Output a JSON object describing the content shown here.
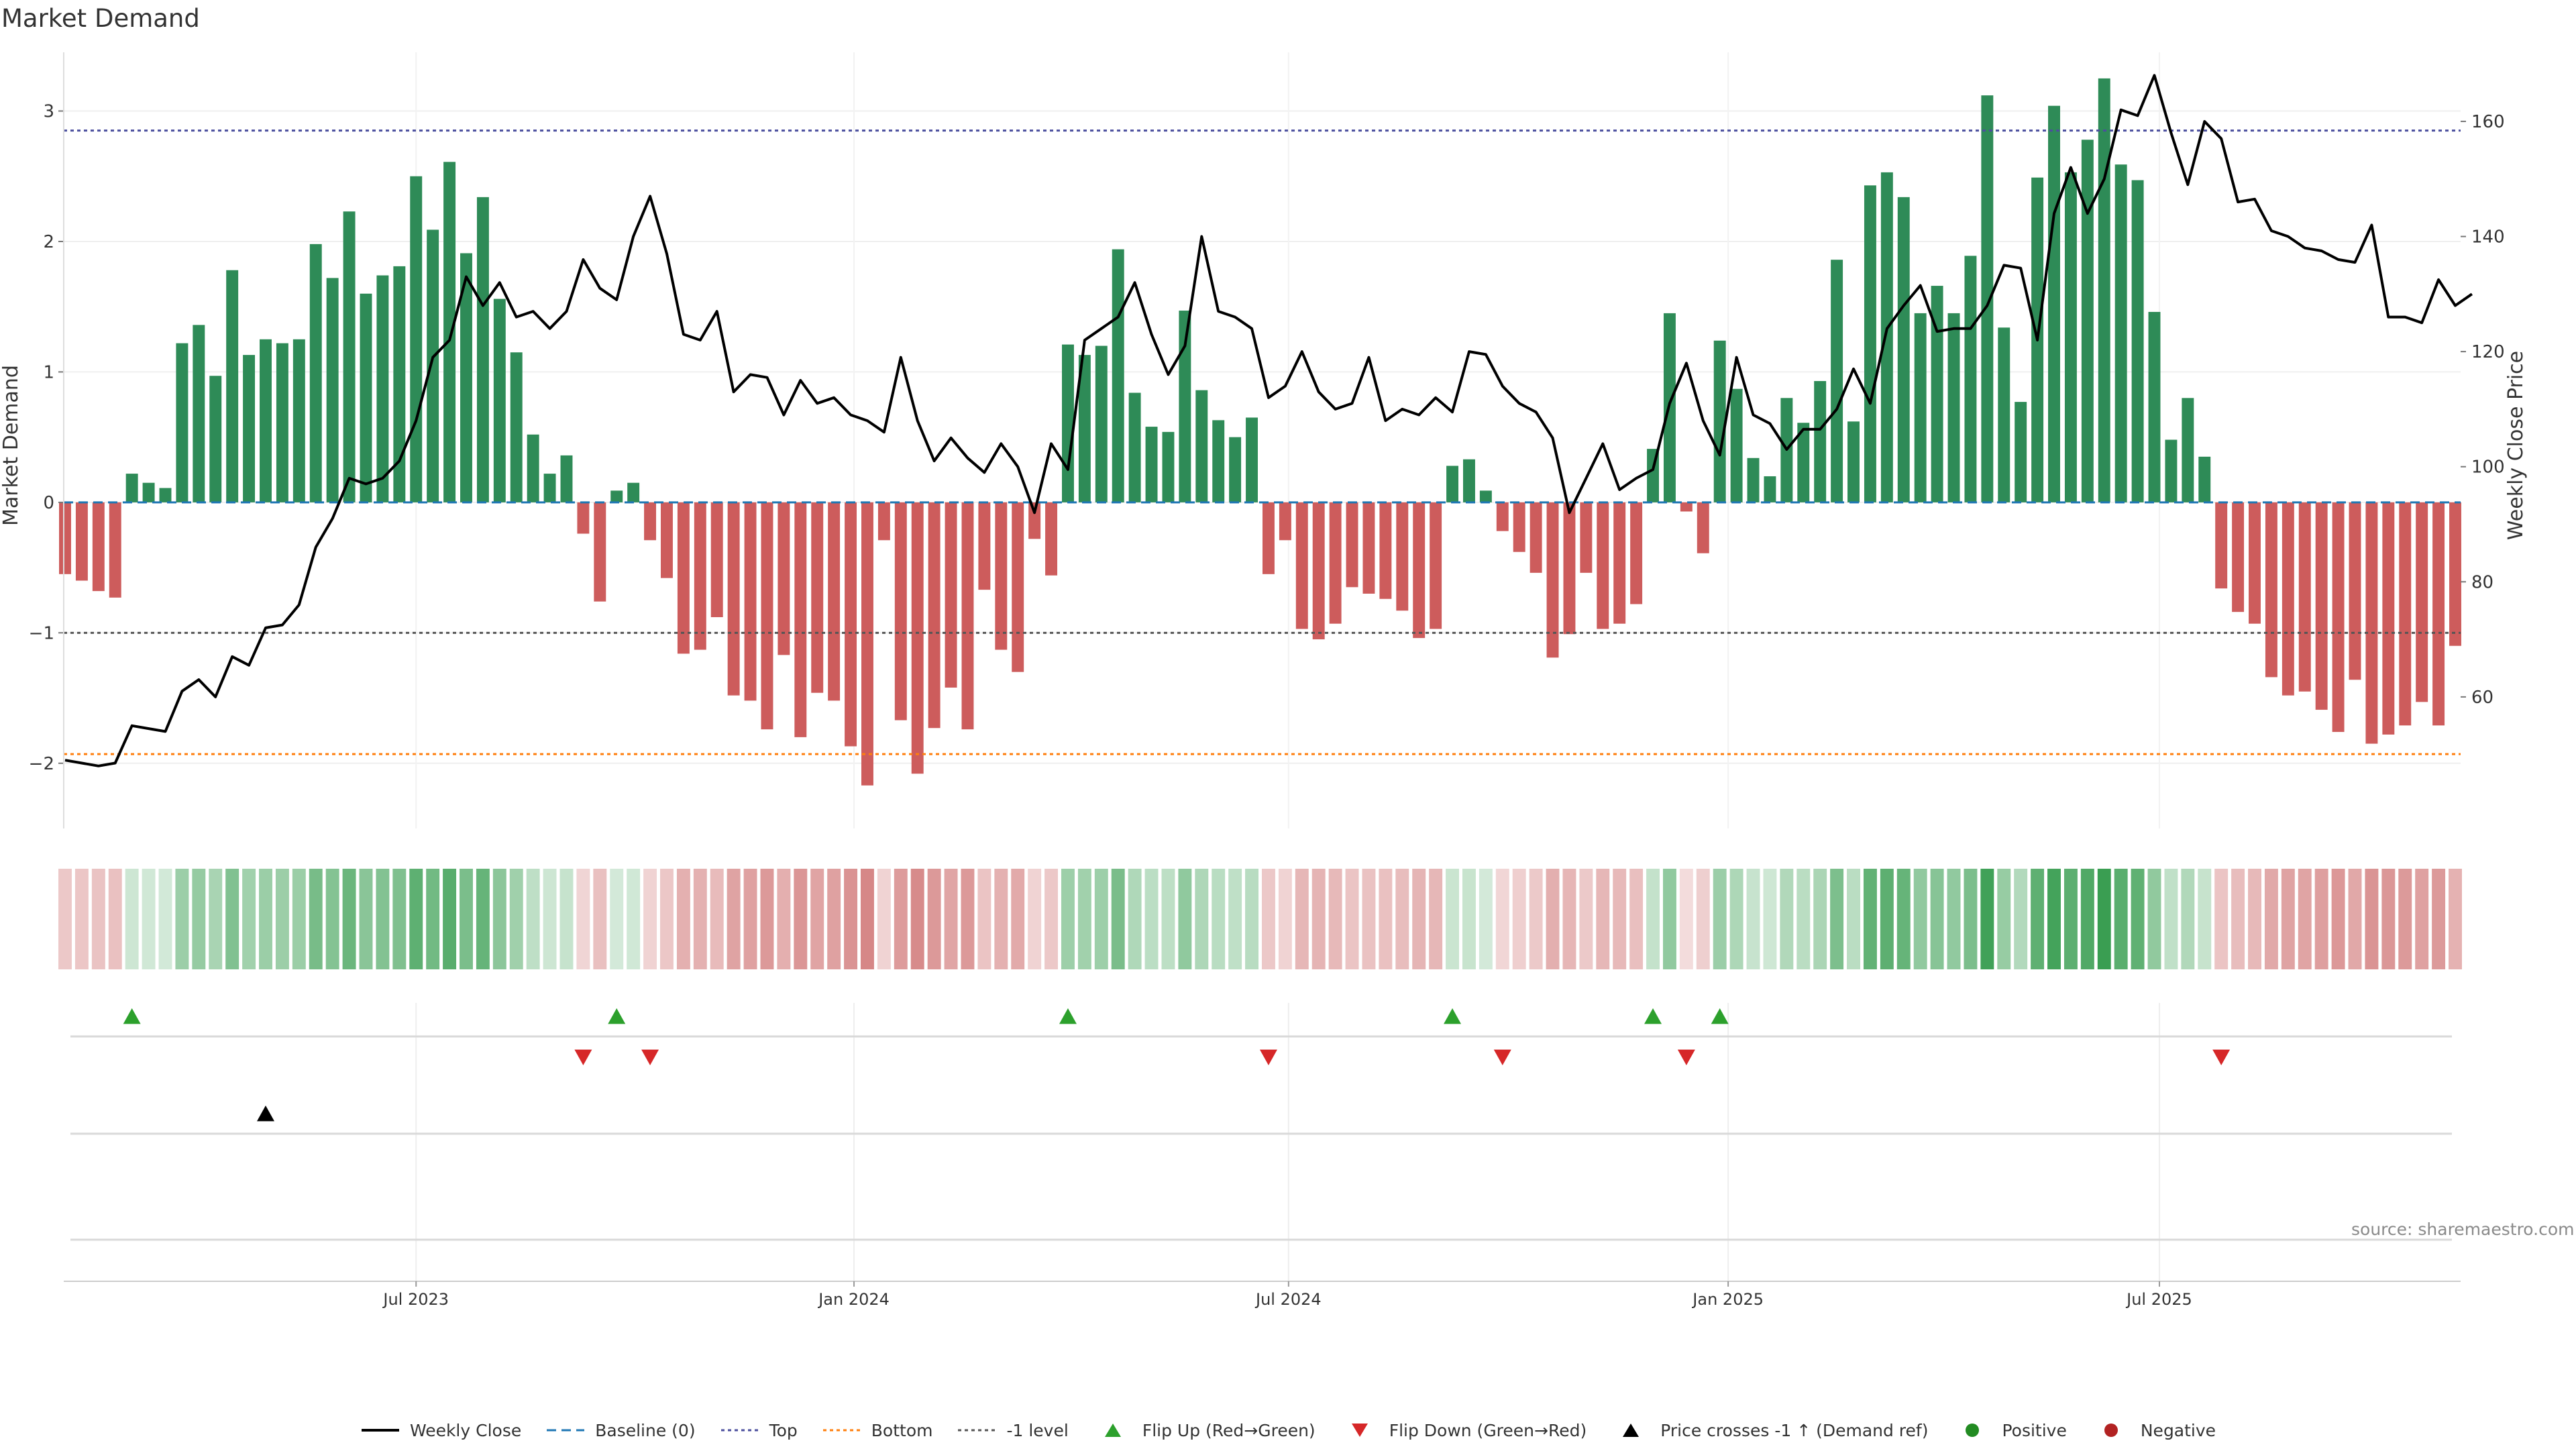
{
  "title": "Market Demand",
  "source": "source: sharemaestro.com",
  "colors": {
    "positive_bar": "#2e8b57",
    "negative_bar": "#cd5c5c",
    "close_line": "#000000",
    "baseline": "#1f77b4",
    "top": "#4b4f9e",
    "bottom": "#ff7f0e",
    "minus1": "#555555",
    "flip_up": "#2ca02c",
    "flip_down": "#d62728",
    "cross": "#000000",
    "positive_dot": "#228b22",
    "negative_dot": "#b22222"
  },
  "legend": [
    {
      "label": "Weekly Close",
      "icon": "solid-line-icon",
      "color": "#000000"
    },
    {
      "label": "Baseline (0)",
      "icon": "dashed-line-icon",
      "color": "#1f77b4"
    },
    {
      "label": "Top",
      "icon": "dotted-line-icon",
      "color": "#4b4f9e"
    },
    {
      "label": "Bottom",
      "icon": "dotted-line-icon",
      "color": "#ff7f0e"
    },
    {
      "label": "-1 level",
      "icon": "dotted-line-icon",
      "color": "#555555"
    },
    {
      "label": "Flip Up (Red→Green)",
      "icon": "triangle-up-icon",
      "color": "#2ca02c"
    },
    {
      "label": "Flip Down (Green→Red)",
      "icon": "triangle-down-icon",
      "color": "#d62728"
    },
    {
      "label": "Price crosses -1 ↑ (Demand ref)",
      "icon": "triangle-up-icon",
      "color": "#000000"
    },
    {
      "label": "Positive",
      "icon": "circle-icon",
      "color": "#228b22"
    },
    {
      "label": "Negative",
      "icon": "circle-icon",
      "color": "#b22222"
    }
  ],
  "chart_data": {
    "type": "bar",
    "ylabel": "Market Demand",
    "y2label": "Weekly Close Price",
    "ylim": [
      -2.5,
      3.45
    ],
    "y_ticks": [
      -2,
      -1,
      0,
      1,
      2,
      3
    ],
    "y2lim": [
      37.14,
      172.0
    ],
    "y2_ticks": [
      60,
      80,
      100,
      120,
      140,
      160
    ],
    "x_start_week": 0,
    "x_end_week": 143,
    "x_ticks": [
      {
        "label": "Jul 2023",
        "week": 21
      },
      {
        "label": "Jan 2024",
        "week": 47.2
      },
      {
        "label": "Jul 2024",
        "week": 73.2
      },
      {
        "label": "Jan 2025",
        "week": 99.5
      },
      {
        "label": "Jul 2025",
        "week": 125.3
      }
    ],
    "levels": {
      "top": 2.85,
      "bottom": -1.93,
      "minus1": -1.0,
      "baseline": 0
    },
    "demand": [
      -0.55,
      -0.6,
      -0.68,
      -0.73,
      0.22,
      0.15,
      0.11,
      1.22,
      1.36,
      0.97,
      1.78,
      1.13,
      1.25,
      1.22,
      1.25,
      1.98,
      1.72,
      2.23,
      1.6,
      1.74,
      1.81,
      2.5,
      2.09,
      2.61,
      1.91,
      2.34,
      1.56,
      1.15,
      0.52,
      0.22,
      0.36,
      -0.24,
      -0.76,
      0.09,
      0.15,
      -0.29,
      -0.58,
      -1.16,
      -1.13,
      -0.88,
      -1.48,
      -1.52,
      -1.74,
      -1.17,
      -1.8,
      -1.46,
      -1.52,
      -1.87,
      -2.17,
      -0.29,
      -1.67,
      -2.08,
      -1.73,
      -1.42,
      -1.74,
      -0.67,
      -1.13,
      -1.3,
      -0.28,
      -0.56,
      1.21,
      1.13,
      1.2,
      1.94,
      0.84,
      0.58,
      0.54,
      1.47,
      0.86,
      0.63,
      0.5,
      0.65,
      -0.55,
      -0.29,
      -0.97,
      -1.05,
      -0.93,
      -0.65,
      -0.7,
      -0.74,
      -0.83,
      -1.04,
      -0.97,
      0.28,
      0.33,
      0.09,
      -0.22,
      -0.38,
      -0.54,
      -1.19,
      -1.01,
      -0.54,
      -0.97,
      -0.93,
      -0.78,
      0.41,
      1.45,
      -0.07,
      -0.39,
      1.24,
      0.87,
      0.34,
      0.2,
      0.8,
      0.61,
      0.93,
      1.86,
      0.62,
      2.43,
      2.53,
      2.34,
      1.45,
      1.66,
      1.45,
      1.89,
      3.12,
      1.34,
      0.77,
      2.49,
      3.04,
      2.53,
      2.78,
      3.25,
      2.59,
      2.47,
      1.46,
      0.48,
      0.8,
      0.35,
      -0.66,
      -0.84,
      -0.93,
      -1.34,
      -1.48,
      -1.45,
      -1.59,
      -1.76,
      -1.36,
      -1.85,
      -1.78,
      -1.71,
      -1.53,
      -1.71,
      -1.1
    ],
    "weekly_close": [
      49,
      48.5,
      48,
      48.5,
      55,
      54.5,
      54,
      61,
      63,
      60,
      67,
      65.5,
      72,
      72.5,
      76,
      86,
      91,
      98,
      97,
      98,
      101,
      108,
      119,
      122,
      133,
      128,
      132,
      126,
      127,
      124,
      127,
      136,
      131,
      129,
      140,
      147,
      137,
      123,
      122,
      127,
      113,
      116,
      115.5,
      109,
      115,
      111,
      112,
      109,
      108,
      106,
      119,
      108,
      101,
      105,
      101.5,
      99,
      104,
      100,
      92,
      104,
      99.5,
      122,
      124,
      126,
      132,
      123,
      116,
      121,
      140,
      127,
      126,
      124,
      112,
      114,
      120,
      113,
      110,
      111,
      119,
      108,
      110,
      109,
      112,
      109.5,
      120,
      119.5,
      114,
      111,
      109.5,
      105,
      92,
      98,
      104,
      96,
      98,
      99.5,
      111,
      118,
      108,
      102,
      119,
      109,
      107.5,
      103,
      106.5,
      106.5,
      110,
      117,
      111,
      124,
      128,
      131.5,
      123.5,
      124,
      124,
      128,
      135,
      134.5,
      122,
      144,
      152,
      144,
      150,
      162,
      161,
      168,
      158,
      149,
      160,
      157,
      146,
      146.5,
      141,
      140,
      138,
      137.5,
      136,
      135.5,
      142,
      126,
      126,
      125,
      132.5,
      128,
      130
    ]
  }
}
